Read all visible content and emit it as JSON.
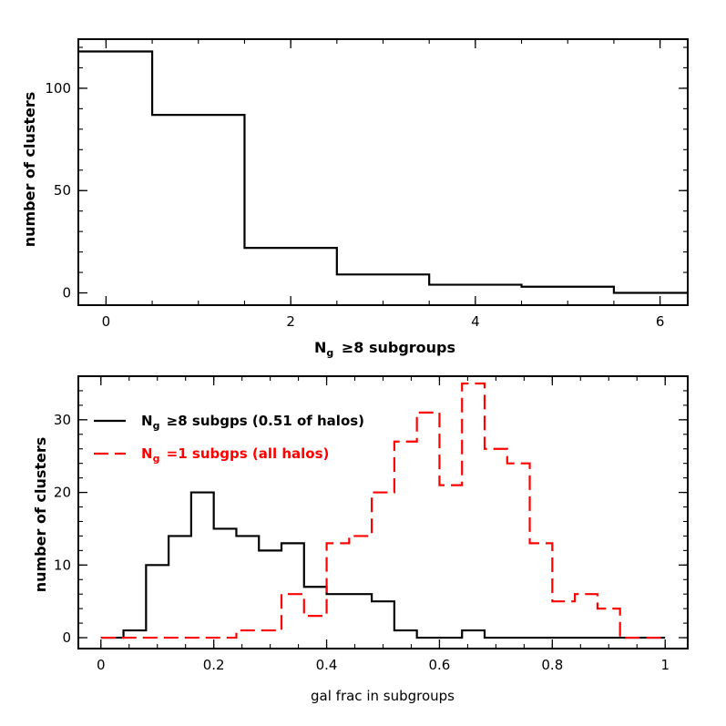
{
  "chart_data": [
    {
      "type": "histogram",
      "xlabel_main": "N",
      "xlabel_sub": "g",
      "xlabel_rest": " ≥8 subgroups",
      "ylabel": "number of clusters",
      "xlim": [
        -0.3,
        6.3
      ],
      "ylim": [
        -6,
        124
      ],
      "xticks": [
        0,
        2,
        4,
        6
      ],
      "yticks": [
        0,
        50,
        100
      ],
      "x_minor_step": 0.5,
      "y_minor_step": 10,
      "series": [
        {
          "color": "#000000",
          "dashed": false,
          "edges": [
            -0.5,
            0.5,
            1.5,
            2.5,
            3.5,
            4.5,
            5.5,
            6.5
          ],
          "counts": [
            118,
            87,
            22,
            9,
            4,
            3,
            0
          ]
        }
      ]
    },
    {
      "type": "histogram",
      "xlabel": "gal frac in subgroups",
      "ylabel": "number of clusters",
      "xlim": [
        -0.04,
        1.04
      ],
      "ylim": [
        -1.5,
        36
      ],
      "xticks": [
        0,
        0.2,
        0.4,
        0.6,
        0.8,
        1
      ],
      "xtick_labels": [
        "0",
        "0.2",
        "0.4",
        "0.6",
        "0.8",
        "1"
      ],
      "yticks": [
        0,
        10,
        20,
        30
      ],
      "x_minor_step": 0.05,
      "y_minor_step": 2,
      "bin_edges": [
        0,
        0.04,
        0.08,
        0.12,
        0.16,
        0.2,
        0.24,
        0.28,
        0.32,
        0.36,
        0.4,
        0.44,
        0.48,
        0.52,
        0.56,
        0.6,
        0.64,
        0.68,
        0.72,
        0.76,
        0.8,
        0.84,
        0.88,
        0.92,
        0.96,
        1.0
      ],
      "series": [
        {
          "name_main": "N",
          "name_sub": "g",
          "name_rest": " ≥8 subgps (0.51 of halos)",
          "color": "#000000",
          "dashed": false,
          "counts": [
            0,
            1,
            10,
            14,
            20,
            15,
            14,
            12,
            13,
            7,
            6,
            6,
            5,
            1,
            0,
            0,
            1,
            0,
            0,
            0,
            0,
            0,
            0,
            0,
            0
          ]
        },
        {
          "name_main": "N",
          "name_sub": "g",
          "name_rest": " =1 subgps (all halos)",
          "color": "#ff0000",
          "dashed": true,
          "counts": [
            0,
            0,
            0,
            0,
            0,
            0,
            1,
            1,
            6,
            3,
            13,
            14,
            20,
            27,
            31,
            21,
            35,
            26,
            24,
            13,
            5,
            6,
            4,
            0,
            0
          ]
        }
      ]
    }
  ]
}
